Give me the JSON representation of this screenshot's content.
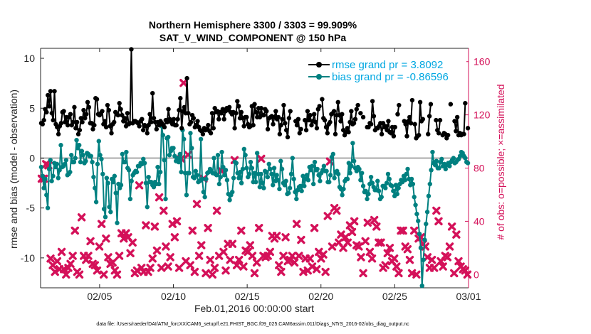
{
  "chart_data": {
    "type": "line",
    "title": "Northern Hemisphere 3300 / 3303 = 99.909%",
    "subtitle": "SAT_V_WIND_COMPONENT @ 150 hPa",
    "xlabel": "Feb.01,2016 00:00:00 start",
    "ylabel": "rmse and bias (model - observation)",
    "ylabel_right": "# of obs: o=possible; ×=assimilated",
    "xlim": [
      0,
      29
    ],
    "ylim": [
      -13,
      11
    ],
    "ylim_right": [
      -10,
      170
    ],
    "x_ticks": [
      4,
      9,
      14,
      19,
      24,
      29
    ],
    "x_tick_labels": [
      "02/05",
      "02/10",
      "02/15",
      "02/20",
      "02/25",
      "03/01"
    ],
    "y_ticks": [
      -10,
      -5,
      0,
      5,
      10
    ],
    "y_tick_labels": [
      "-10",
      "-5",
      "0",
      "5",
      "10"
    ],
    "y_ticks_right": [
      0,
      40,
      80,
      120,
      160
    ],
    "y_tick_labels_right": [
      "0",
      "40",
      "80",
      "120",
      "160"
    ],
    "zero_line": 0,
    "legend_position": "top-right",
    "series": [
      {
        "name": "rmse grand pr = 3.8092",
        "color": "#000000",
        "axis": "left",
        "values": [
          3.5,
          3.4,
          3.8,
          4.9,
          4.6,
          6.3,
          5.2,
          6.7,
          4.5,
          3.8,
          6.7,
          3.4,
          3.1,
          2.4,
          3.2,
          3.5,
          4.6,
          4.7,
          3.6,
          4.1,
          3.3,
          4.1,
          4.4,
          3.3,
          3.6,
          5.1,
          3.0,
          3.6,
          2.4,
          2.8,
          4.0,
          3.6,
          4.8,
          4.0,
          4.4,
          5.6,
          5.1,
          3.5,
          3.5,
          2.9,
          3.3,
          6.0,
          5.9,
          4.4,
          4.3,
          4.5,
          4.7,
          3.4,
          3.7,
          3.1,
          5.3,
          4.8,
          3.2,
          2.5,
          3.4,
          3.6,
          4.6,
          4.4,
          4.3,
          5.5,
          4.9,
          4.3,
          3.7,
          4.0,
          3.2,
          4.5,
          3.4,
          3.5,
          10.9,
          3.5,
          3.7,
          3.7,
          3.6,
          3.5,
          3.2,
          3.7,
          3.9,
          2.8,
          3.3,
          3.2,
          2.5,
          3.3,
          4.4,
          3.6,
          6.5,
          4.0,
          3.6,
          2.9,
          3.6,
          3.3,
          3.7,
          3.5,
          3.3,
          3.1,
          3.8,
          3.6,
          4.9,
          3.9,
          3.6,
          3.4,
          3.9,
          3.3,
          3.3,
          3.9,
          4.8,
          6.0,
          3.0,
          4.7,
          5.1,
          4.5,
          8.0,
          4.5,
          3.4,
          3.6,
          4.3,
          4.0,
          3.1,
          3.3,
          3.7,
          3.1,
          2.8,
          2.7,
          2.4,
          3.0,
          2.8,
          2.9,
          3.3,
          2.7,
          2.5,
          4.5,
          3.0,
          5.0,
          4.6,
          4.7,
          3.9,
          4.6,
          4.5,
          4.9,
          3.9,
          4.7,
          5.0,
          4.8,
          5.1,
          4.6,
          4.4,
          4.6,
          3.0,
          4.5,
          5.7,
          5.2,
          4.0,
          4.6,
          4.0,
          3.2,
          4.1,
          4.1,
          3.4,
          3.1,
          3.2,
          5.2,
          3.3,
          5.4,
          4.6,
          4.1,
          5.0,
          4.1,
          5.0,
          4.3,
          4.3,
          4.9,
          4.7,
          2.9,
          4.0,
          4.1,
          4.2,
          3.4,
          4.1,
          4.7,
          3.9,
          4.1,
          2.4,
          3.3,
          3.9,
          5.3,
          3.5,
          2.8,
          2.1,
          4.0,
          4.7,
          null,
          null,
          null,
          3.7,
          3.3,
          3.9,
          2.5,
          2.9,
          null,
          null,
          3.8,
          2.8,
          4.7,
          3.8,
          4.3,
          3.3,
          3.7,
          4.4,
          3.6,
          3.0,
          4.9,
          5.2,
          null,
          5.9,
          4.0,
          3.8,
          3.1,
          2.5,
          3.4,
          3.6,
          4.4,
          4.5,
          4.7,
          2.4,
          4.3,
          5.6,
          4.3,
          3.7,
          4.4,
          2.8,
          2.3,
          2.6,
          3.0,
          2.6,
          3.6,
          4.7,
          3.4,
          3.5,
          3.9,
          4.9,
          5.3,
          null,
          4.5,
          null,
          4.1,
          null,
          null,
          3.1,
          3.1,
          3.5,
          3.4,
          5.7,
          4.2,
          2.8,
          3.0,
          3.0,
          3.2,
          3.5,
          2.4,
          3.5,
          3.1,
          3.2,
          2.8,
          3.7,
          2.6,
          2.5,
          3.1,
          2.2,
          3.1,
          null,
          4.4,
          5.3,
          null,
          null,
          null,
          3.7,
          3.4,
          2.2,
          3.7,
          4.1,
          3.5,
          5.8,
          null,
          3.4,
          2.0,
          2.2,
          2.3,
          5.6,
          3.7,
          3.9,
          null,
          null,
          null,
          2.4,
          4.2,
          5.4,
          null,
          null,
          null,
          3.8,
          2.8,
          2.5,
          3.8,
          null,
          2.3,
          2.5,
          2.4,
          2.0,
          2.3,
          null,
          5.4,
          null,
          null,
          3.7,
          2.7,
          4.1,
          2.3,
          2.5,
          2.3,
          2.4,
          2.4,
          5.5,
          null,
          3.0
        ]
      },
      {
        "name": "bias grand pr = -0.86596",
        "color": "#008080",
        "axis": "left",
        "values": [
          -0.9,
          -1.8,
          -3.0,
          -2.1,
          -3.7,
          -5.0,
          -1.1,
          -0.2,
          -2.3,
          -1.8,
          -0.5,
          -0.9,
          -0.6,
          -2.0,
          -1.2,
          1.3,
          -0.9,
          -0.8,
          -0.6,
          -0.2,
          -1.7,
          -1.6,
          -1.4,
          0.3,
          -0.4,
          -0.4,
          0.0,
          1.8,
          1.0,
          1.3,
          -0.4,
          0.7,
          0.3,
          -0.5,
          -0.3,
          0.5,
          0.4,
          0.2,
          0.2,
          -0.4,
          -1.9,
          -3.0,
          -4.4,
          -0.6,
          1.7,
          0.3,
          -0.1,
          -1.6,
          -5.1,
          -5.9,
          -2.0,
          -2.5,
          -4.9,
          -5.4,
          -2.1,
          -2.4,
          -1.8,
          -3.5,
          -6.5,
          -2.6,
          -3.0,
          -2.7,
          0.4,
          -0.4,
          -0.4,
          0.6,
          -1.0,
          -1.2,
          -4.1,
          -2.3,
          -1.7,
          -1.5,
          -1.3,
          -1.4,
          -0.8,
          -0.8,
          -0.5,
          -0.6,
          -0.1,
          -0.5,
          -2.5,
          -4.9,
          -1.9,
          -2.4,
          -2.4,
          -2.7,
          -2.9,
          -2.4,
          -2.6,
          -0.9,
          -2.6,
          -1.4,
          3.2,
          2.3,
          -0.2,
          -4.1,
          2.0,
          2.1,
          0.3,
          0.7,
          1.0,
          1.0,
          0.2,
          -0.3,
          0.0,
          -0.4,
          0.4,
          -1.4,
          2.8,
          1.9,
          -1.5,
          -3.7,
          -1.5,
          -1.5,
          2.5,
          1.0,
          -1.9,
          -2.0,
          -1.3,
          -1.7,
          -2.4,
          -2.3,
          1.9,
          -2.1,
          -3.4,
          -3.9,
          -2.1,
          -1.5,
          -1.4,
          -1.1,
          -1.3,
          -1.5,
          0.0,
          -1.6,
          -1.7,
          0.3,
          -2.6,
          -1.9,
          0.6,
          -0.9,
          -1.7,
          -1.2,
          -2.2,
          -3.6,
          -4.2,
          -3.7,
          -3.4,
          -2.0,
          -0.4,
          -0.5,
          -1.5,
          -2.0,
          -1.4,
          -2.5,
          -1.1,
          0.9,
          0.3,
          -1.0,
          -1.9,
          -1.6,
          -0.4,
          -1.0,
          -2.4,
          -1.5,
          -2.4,
          0.5,
          -1.6,
          -2.9,
          -1.6,
          -2.5,
          -3.0,
          -1.3,
          -1.4,
          -1.9,
          -0.6,
          -1.1,
          -1.6,
          -2.7,
          -1.0,
          -2.3,
          -1.7,
          -2.2,
          -3.1,
          -0.3,
          -1.1,
          -2.5,
          -2.7,
          -2.3,
          -3.6,
          -3.5,
          -3.0,
          -1.6,
          0.0,
          -2.1,
          -3.4,
          -4.1,
          -3.2,
          -2.9,
          -2.8,
          -3.3,
          -1.8,
          -2.8,
          -2.1,
          -1.7,
          -2.2,
          -0.9,
          -1.2,
          -0.8,
          -2.6,
          -0.4,
          -1.2,
          -1.1,
          -1.7,
          -2.3,
          -1.5,
          -1.2,
          -0.8,
          -1.3,
          -1.3,
          -2.4,
          -2.4,
          -1.7,
          0.1,
          0.4,
          -2.0,
          -1.4,
          -1.3,
          -1.6,
          -2.9,
          -3.1,
          -3.7,
          -3.1,
          -2.3,
          -2.1,
          -2.1,
          -0.5,
          -1.5,
          -0.8,
          1.5,
          -0.3,
          -1.0,
          -1.3,
          -0.9,
          -1.1,
          -2.2,
          -1.5,
          -2.8,
          -3.4,
          -3.3,
          -4.1,
          -3.6,
          -2.6,
          -1.9,
          -2.5,
          -2.9,
          -3.2,
          -3.2,
          -2.3,
          -3.3,
          -4.1,
          -3.9,
          -2.8,
          -2.8,
          -3.0,
          -2.5,
          -1.6,
          -2.1,
          -2.7,
          -2.8,
          -3.3,
          -3.8,
          -2.7,
          -3.6,
          -3.0,
          -2.6,
          -2.2,
          -2.4,
          -1.8,
          -2.2,
          -1.6,
          -1.1,
          -2.1,
          -2.7,
          -2.1,
          -2.6,
          -3.9,
          -4.7,
          -5.6,
          -6.3,
          -7.6,
          -9.0,
          -12.8,
          -10.2,
          -8.2,
          -6.6,
          -5.4,
          -3.8,
          -2.6,
          -1.2,
          0.6,
          -0.5,
          -0.7,
          -0.3,
          -1.0,
          -1.0,
          -0.4,
          -0.1,
          -0.8,
          -0.6,
          -1.1,
          -0.7,
          -0.5,
          -0.8,
          -0.4,
          -0.2,
          0.0,
          -0.5,
          -0.4,
          -0.2,
          -0.1,
          0.2,
          0.6,
          0.5,
          0.2,
          0.0,
          -0.4,
          -0.5
        ]
      },
      {
        "name": "obs assimilated",
        "color": "#d41159",
        "axis": "right",
        "values": [
          72,
          72,
          83,
          82,
          12,
          7,
          2,
          10,
          4,
          17,
          4,
          0,
          5,
          8,
          14,
          33,
          2,
          0,
          43,
          14,
          11,
          14,
          25,
          8,
          7,
          3,
          21,
          38,
          0,
          27,
          13,
          8,
          9,
          3,
          0,
          14,
          31,
          27,
          31,
          28,
          16,
          24,
          1,
          3,
          67,
          5,
          2,
          37,
          2,
          5,
          12,
          36,
          18,
          58,
          5,
          48,
          21,
          6,
          13,
          38,
          28,
          40,
          5,
          87,
          144,
          10,
          90,
          7,
          33,
          2,
          53,
          14,
          22,
          72,
          1,
          35,
          11,
          0,
          5,
          48,
          14,
          78,
          17,
          3,
          23,
          11,
          23,
          86,
          7,
          11,
          33,
          6,
          18,
          17,
          22,
          14,
          1,
          9,
          35,
          87,
          14,
          13,
          14,
          17,
          29,
          27,
          29,
          7,
          2,
          14,
          28,
          10,
          11,
          14,
          9,
          38,
          14,
          26,
          2,
          12,
          3,
          12,
          6,
          35,
          4,
          17,
          12,
          15,
          2,
          44,
          85,
          21,
          50,
          48,
          24,
          30,
          20,
          28,
          24,
          37,
          32,
          40,
          22,
          21,
          13,
          1,
          25,
          39,
          17,
          12,
          41,
          36,
          24,
          24,
          5,
          7,
          16,
          20,
          10,
          12,
          6,
          1,
          33,
          33,
          21,
          19,
          11,
          1,
          33,
          0,
          27,
          28,
          23,
          21,
          13,
          5,
          11,
          5,
          48,
          40,
          10,
          6,
          14,
          13,
          21,
          36,
          1,
          30,
          10,
          6,
          4,
          3,
          0
        ]
      }
    ],
    "footer": "data file: /Users/raeder/DAI/ATM_forcXX/CAM6_setup/f.e21.FHIST_BGC.f09_025.CAM6assim.011/Diags_NTrS_2016-02/obs_diag_output.nc",
    "colors": {
      "rmse": "#000000",
      "bias": "#008080",
      "obs": "#d41159",
      "legend_rmse_text": "#00a7e1",
      "legend_bias_text": "#00a7e1",
      "zero_line": "#aaaaaa"
    }
  }
}
